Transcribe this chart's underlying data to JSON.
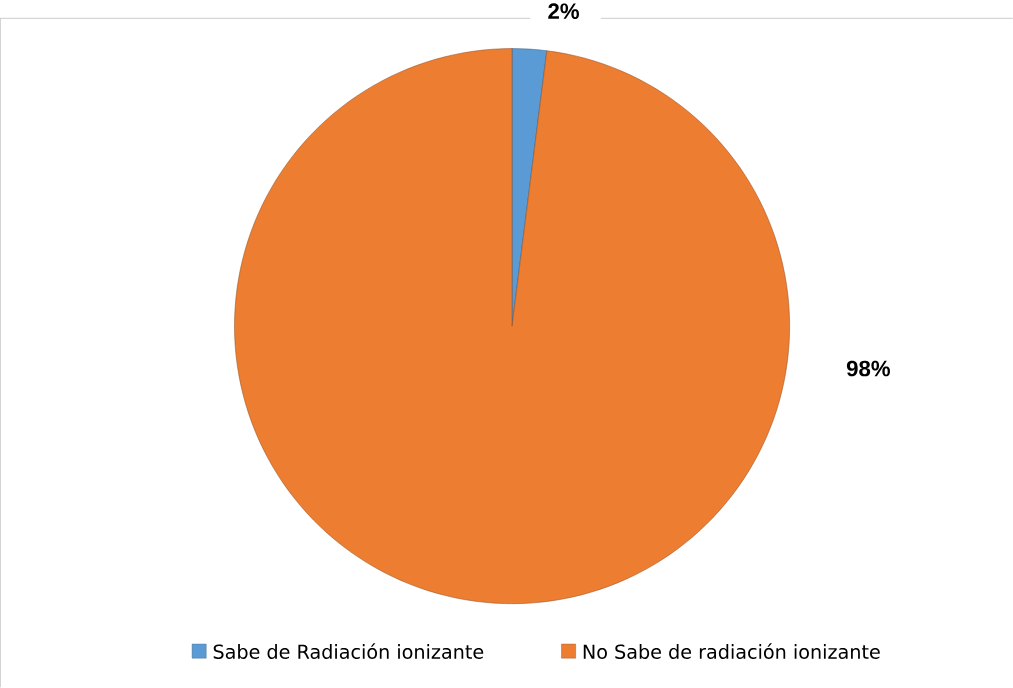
{
  "chart_data": {
    "type": "pie",
    "categories": [
      "Sabe de Radiación ionizante",
      "No Sabe de radiación ionizante"
    ],
    "values": [
      2,
      98
    ],
    "colors": [
      "#5b9bd5",
      "#ed7d31"
    ],
    "value_labels": [
      "2%",
      "98%"
    ],
    "legend": "bottom"
  }
}
